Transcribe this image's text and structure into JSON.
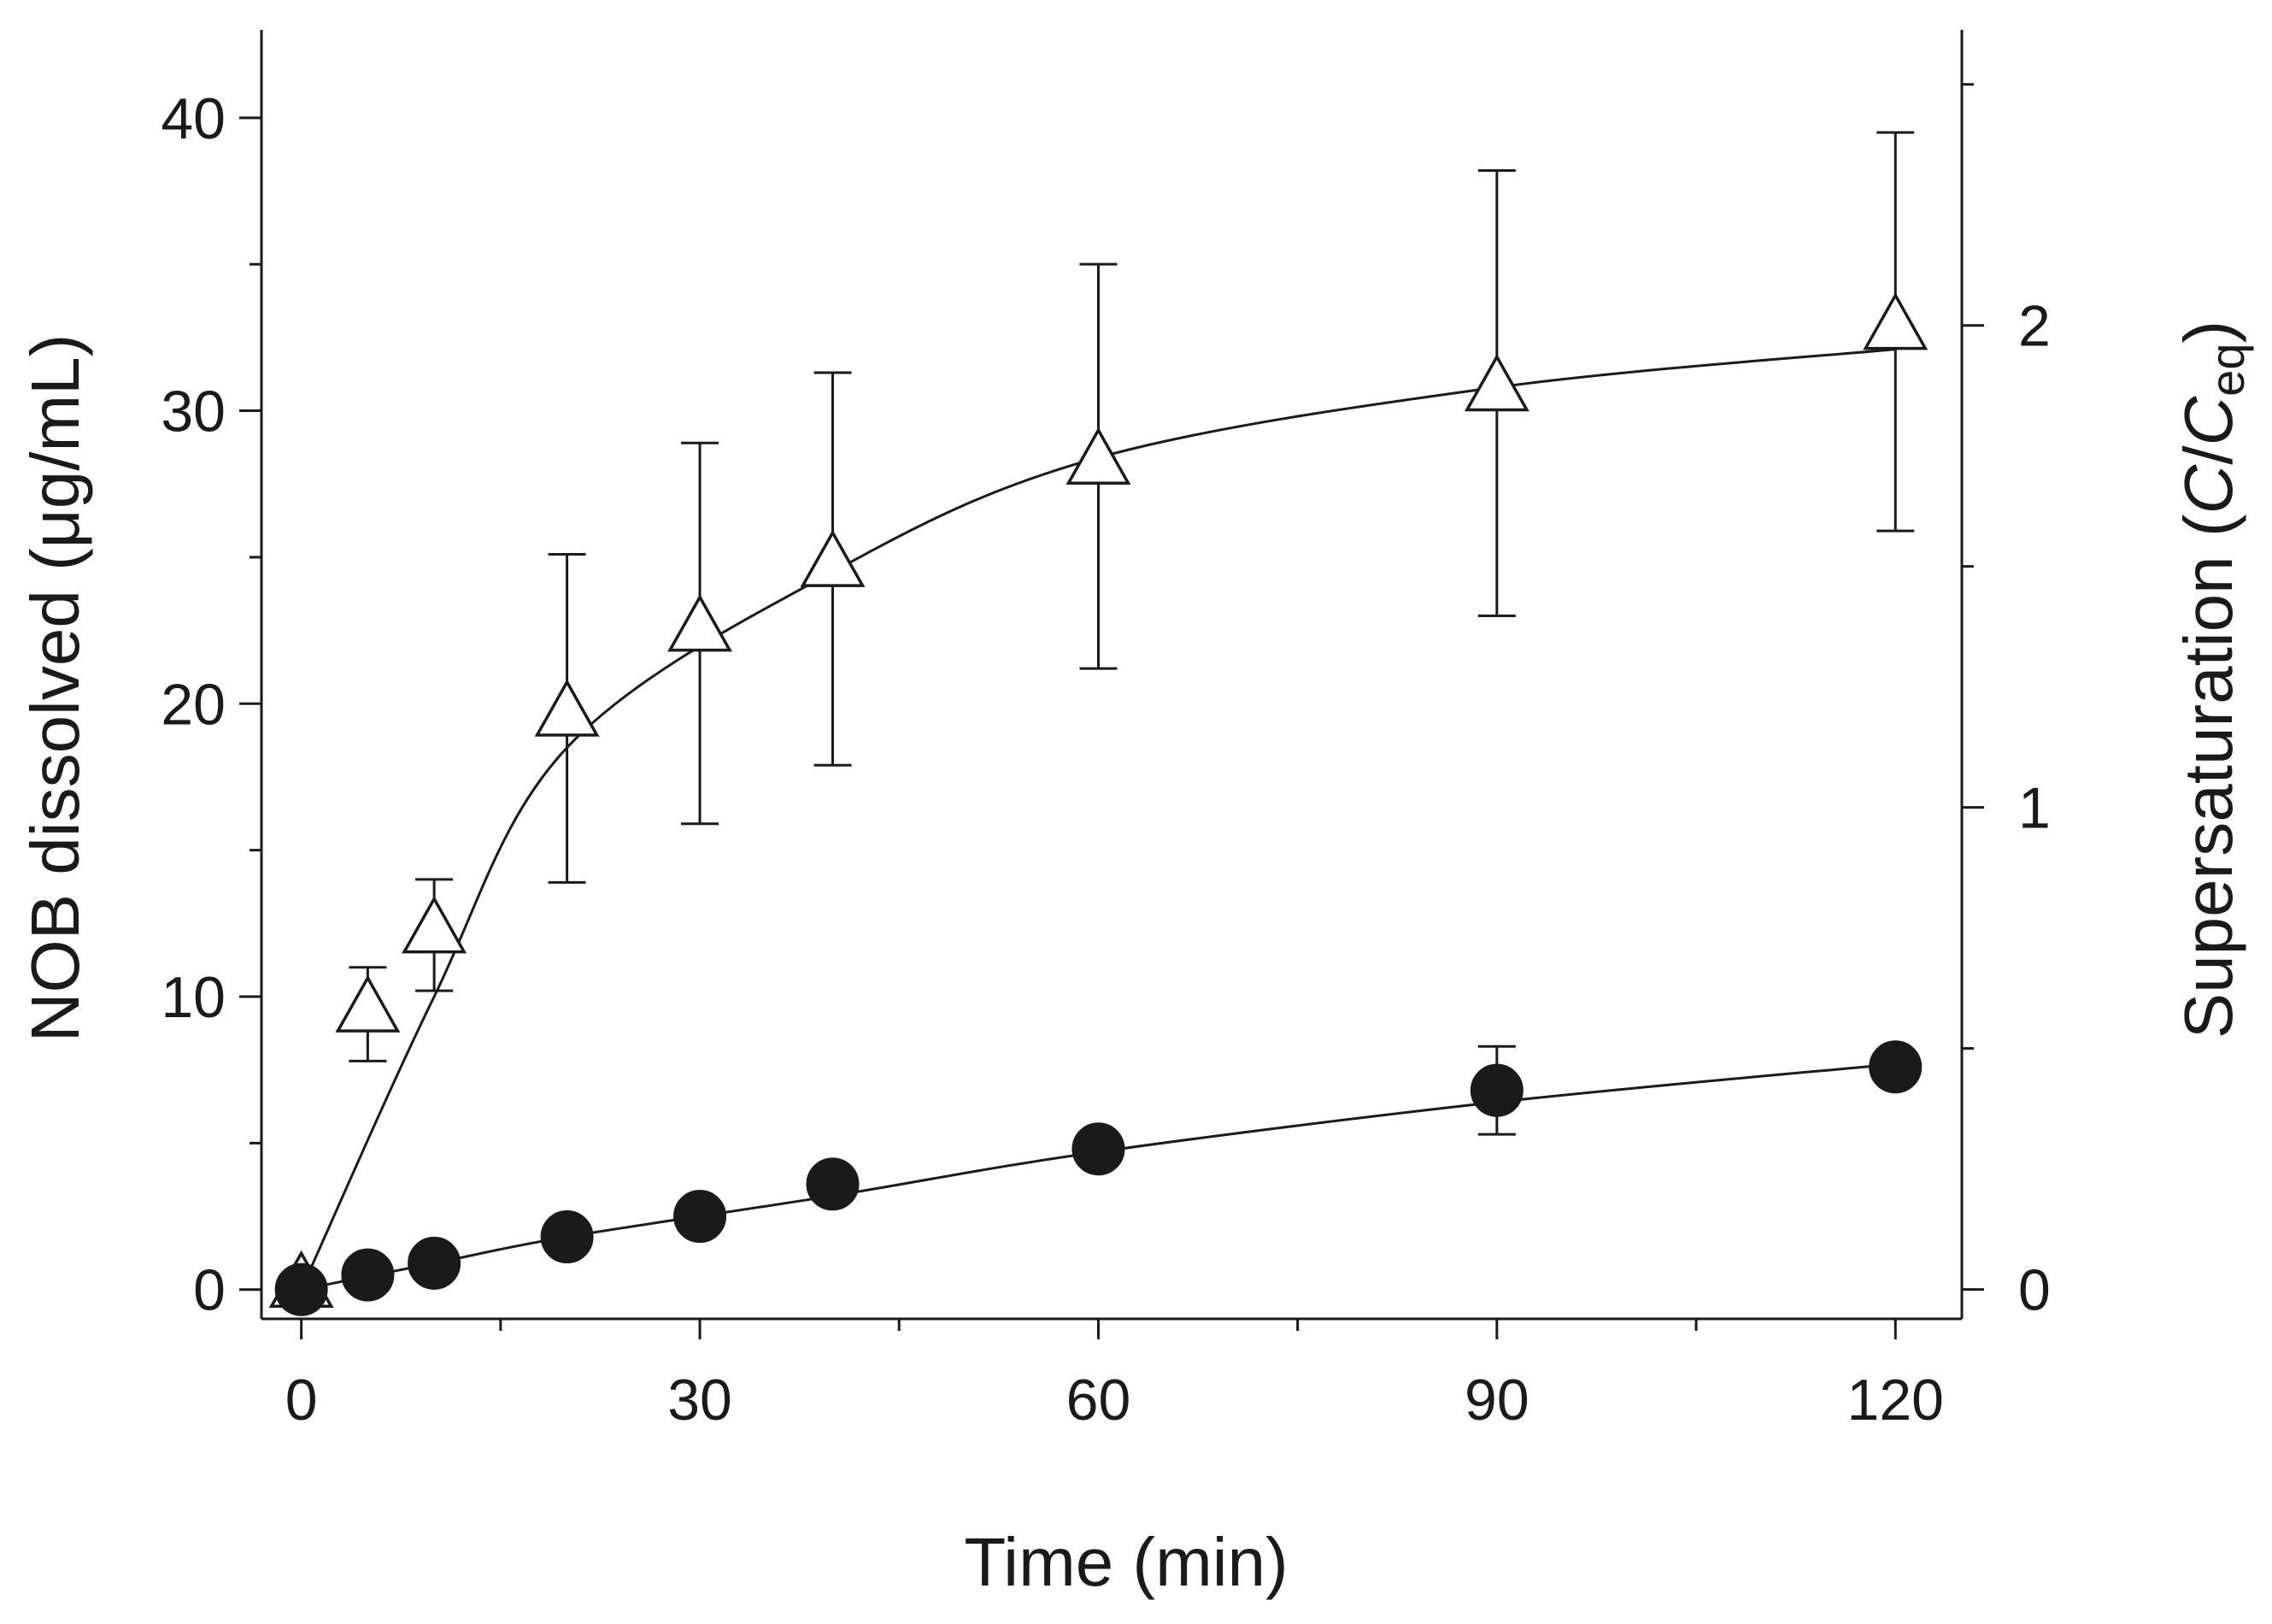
{
  "chart_data": {
    "type": "scatter",
    "xlabel": "Time (min)",
    "ylabel": "NOB dissolved (μg/mL)",
    "y2label": {
      "prefix": "Supersaturation (",
      "c1": "C",
      "slash": "/",
      "c2": "C",
      "sub": "eq",
      "suffix": ")"
    },
    "xlim": [
      -3,
      125
    ],
    "ylim": [
      -1,
      43
    ],
    "y2lim": [
      -0.061,
      2.613
    ],
    "xticks": [
      0,
      30,
      60,
      90,
      120
    ],
    "xticks_minor": [
      15,
      45,
      75,
      105
    ],
    "yticks": [
      0,
      10,
      20,
      30,
      40
    ],
    "yticks_minor": [
      5,
      15,
      25,
      35
    ],
    "y2ticks": [
      0,
      1,
      2
    ],
    "y2ticks_minor": [
      0.5,
      1.5,
      2.5
    ],
    "y2_per_y1": 0.0608,
    "series": [
      {
        "name": "triangles",
        "marker": "open-triangle",
        "x": [
          0,
          5,
          10,
          20,
          30,
          40,
          60,
          90,
          120
        ],
        "y": [
          0,
          9.4,
          12.1,
          19.5,
          22.4,
          24.6,
          28.1,
          30.6,
          32.7
        ],
        "err": [
          0,
          1.6,
          1.9,
          5.6,
          6.5,
          6.7,
          6.9,
          7.6,
          6.8
        ],
        "fit": [
          0,
          10,
          18.5,
          24.5,
          28.4,
          30.8,
          32.1
        ]
      },
      {
        "name": "circles",
        "marker": "filled-circle",
        "x": [
          0,
          5,
          10,
          20,
          30,
          40,
          60,
          90,
          120
        ],
        "y": [
          0,
          0.5,
          0.9,
          1.8,
          2.5,
          3.6,
          4.8,
          6.8,
          7.6
        ],
        "err": [
          0,
          0,
          0,
          0,
          0,
          0,
          0,
          1.5,
          0
        ],
        "fit": [
          0,
          0.9,
          1.8,
          3.2,
          4.7,
          6.4,
          7.7
        ]
      }
    ],
    "fit_x": [
      0,
      10,
      20,
      40,
      60,
      90,
      120
    ]
  }
}
